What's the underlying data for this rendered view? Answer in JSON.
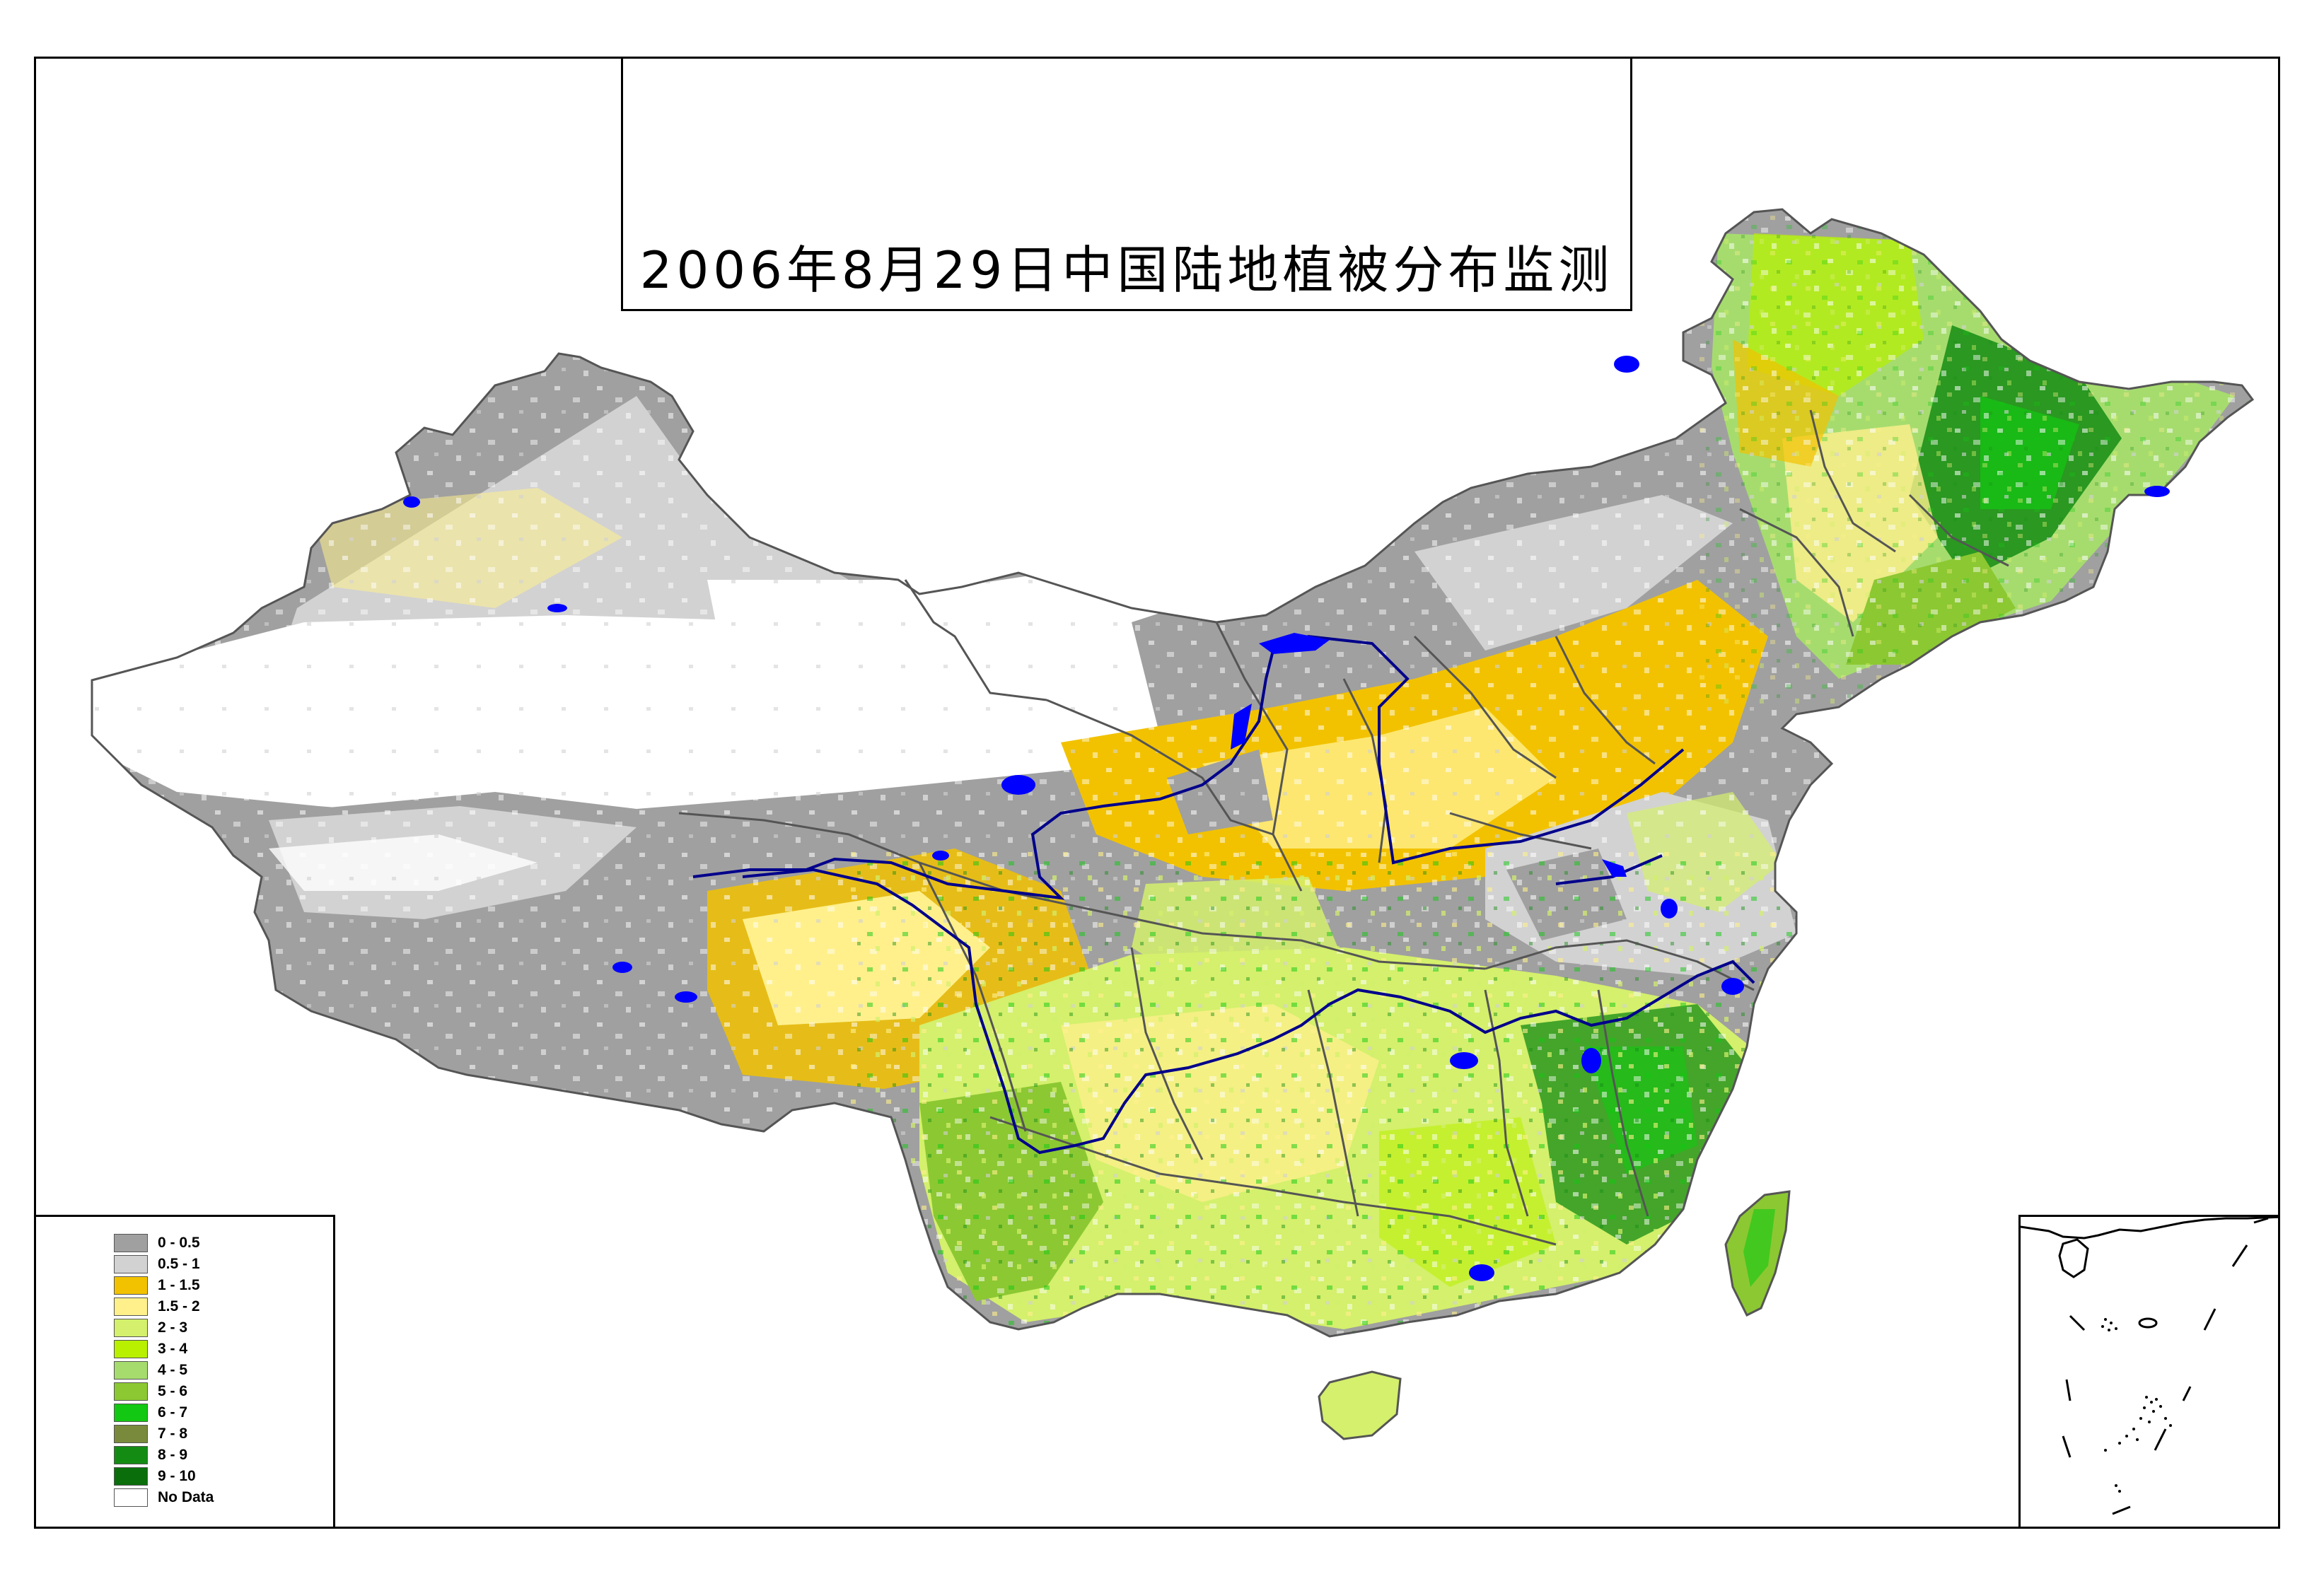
{
  "title": "2006年8月29日中国陆地植被分布监测",
  "legend": {
    "items": [
      {
        "label": "0 - 0.5",
        "color": "#a0a0a0"
      },
      {
        "label": "0.5 - 1",
        "color": "#d2d2d2"
      },
      {
        "label": "1 - 1.5",
        "color": "#f2c200"
      },
      {
        "label": "1.5 - 2",
        "color": "#fff08c"
      },
      {
        "label": "2 - 3",
        "color": "#d4f06c"
      },
      {
        "label": "3 - 4",
        "color": "#b8f000"
      },
      {
        "label": "4 - 5",
        "color": "#a6dc6e"
      },
      {
        "label": "5 - 6",
        "color": "#8cc832"
      },
      {
        "label": "6 - 7",
        "color": "#12c812"
      },
      {
        "label": "7 - 8",
        "color": "#7a8a3c"
      },
      {
        "label": "8 - 9",
        "color": "#148c14"
      },
      {
        "label": "9 - 10",
        "color": "#0a6e0a"
      },
      {
        "label": "No Data",
        "color": "#ffffff"
      }
    ]
  },
  "colors": {
    "water": "#0000ff",
    "river": "#00008b",
    "boundary": "#555555",
    "frame": "#000000"
  }
}
